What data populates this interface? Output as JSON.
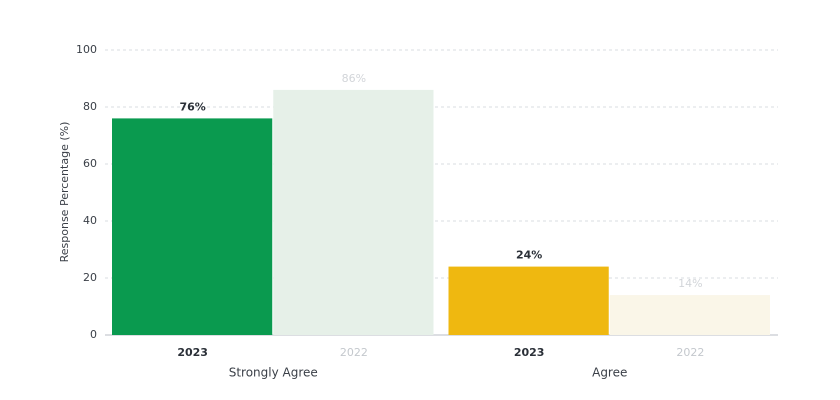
{
  "chart_data": {
    "type": "bar",
    "y_label": "Response Percentage (%)",
    "categories": [
      "Strongly Agree",
      "Agree"
    ],
    "series": [
      {
        "name": "2023",
        "colors": [
          "#0a9a4f",
          "#efb810"
        ],
        "values": [
          76,
          24
        ],
        "value_labels": [
          "76%",
          "24%"
        ]
      },
      {
        "name": "2022",
        "colors": [
          "#e6f0e8",
          "#faf6e8"
        ],
        "values": [
          86,
          14
        ],
        "value_labels": [
          "86%",
          "14%"
        ]
      }
    ],
    "ylim": [
      0,
      100
    ],
    "yticks": [
      0,
      20,
      40,
      60,
      80,
      100
    ],
    "grid": true
  }
}
